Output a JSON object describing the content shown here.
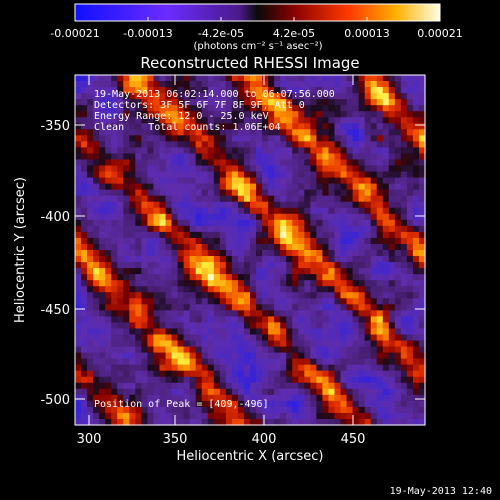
{
  "colorbar": {
    "ticks": [
      "-0.00021",
      "-0.00013",
      "-4.2e-05",
      "4.2e-05",
      "0.00013",
      "0.00021"
    ],
    "units": "(photons cm⁻² s⁻¹ asec⁻²)"
  },
  "plot": {
    "title": "Reconstructed RHESSI Image",
    "xlabel": "Heliocentric X (arcsec)",
    "ylabel": "Heliocentric Y (arcsec)",
    "xticks": [
      "300",
      "350",
      "400",
      "450"
    ],
    "yticks": [
      "-350",
      "-400",
      "-450",
      "-500"
    ],
    "info": [
      "19-May-2013 06:02:14.000 to 06:07:56.000",
      "Detectors: 3F 5F 6F 7F 8F 9F, Att 0",
      "Energy Range: 12.0 - 25.0 keV",
      "Clean    Total counts: 1.06E+04"
    ],
    "peak": "Position of Peak = [409,-496]"
  },
  "footer": {
    "timestamp": "19-May-2013 12:40"
  },
  "chart_data": {
    "type": "heatmap",
    "title": "Reconstructed RHESSI Image",
    "xlabel": "Heliocentric X (arcsec)",
    "ylabel": "Heliocentric Y (arcsec)",
    "xlim": [
      292,
      482
    ],
    "ylim": [
      -517,
      -321
    ],
    "zlim": [
      -0.00021,
      0.00021
    ],
    "colormap": "blue-purple-red-yellow-white",
    "peak_position": [
      409,
      -496
    ]
  }
}
